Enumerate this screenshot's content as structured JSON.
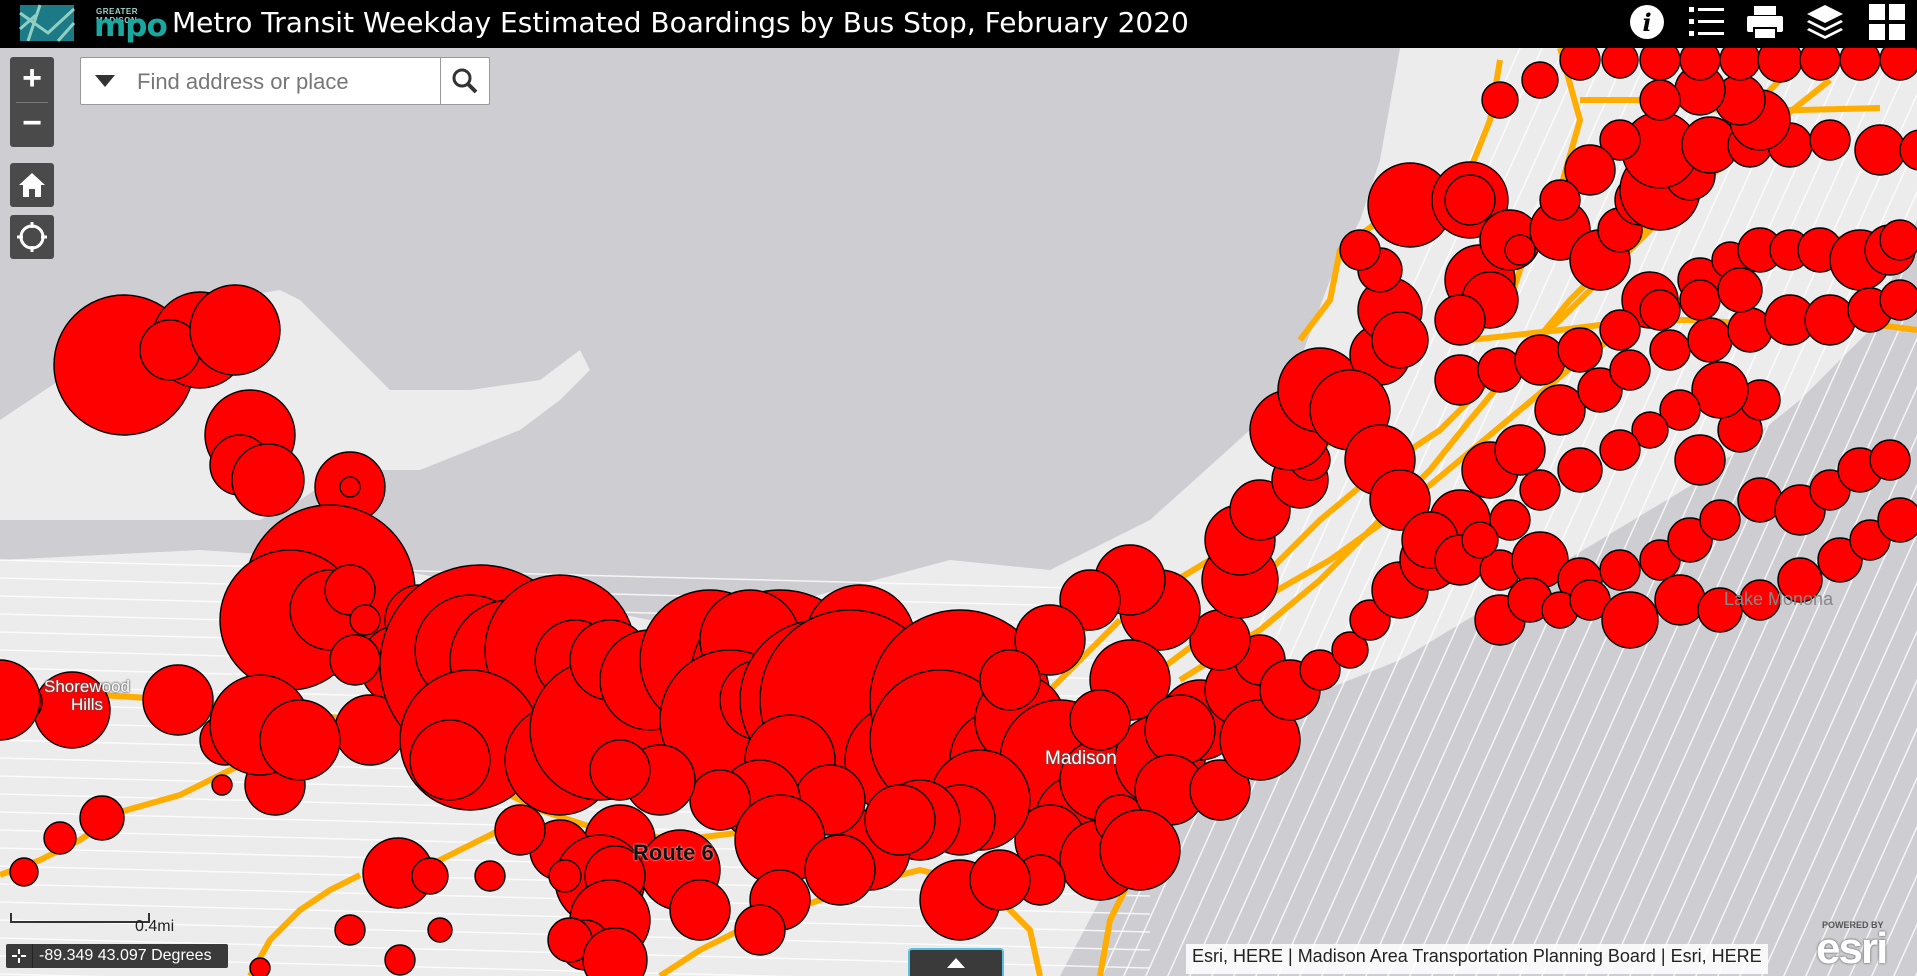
{
  "header": {
    "logo_small_text": "GREATER MADISON",
    "logo_text": "mpo",
    "title": "Metro Transit Weekday Estimated Boardings by Bus Stop, February 2020"
  },
  "toolbar": {
    "icons": [
      "info-icon",
      "legend-list-icon",
      "print-icon",
      "layers-icon",
      "basemap-gallery-icon"
    ]
  },
  "controls": {
    "zoom_in_label": "+",
    "zoom_out_label": "−"
  },
  "search": {
    "placeholder": "Find address or place"
  },
  "map_labels": {
    "shorewood": "Shorewood\nHills",
    "madison": "Madison",
    "lake_monona": "Lake Monona",
    "route": "Route 6"
  },
  "scale": {
    "label": "0.4mi"
  },
  "coordinates": {
    "text": "-89.349 43.097 Degrees"
  },
  "attribution": "Esri, HERE | Madison Area Transportation Planning Board | Esri, HERE",
  "esri_logo": {
    "powered_by": "POWERED BY",
    "name": "esri"
  },
  "colors": {
    "stop_fill": "#ff0000",
    "route_line": "#ffaa00",
    "water": "#cdcdd2",
    "land": "#ececec",
    "header_bg": "#000000"
  }
}
